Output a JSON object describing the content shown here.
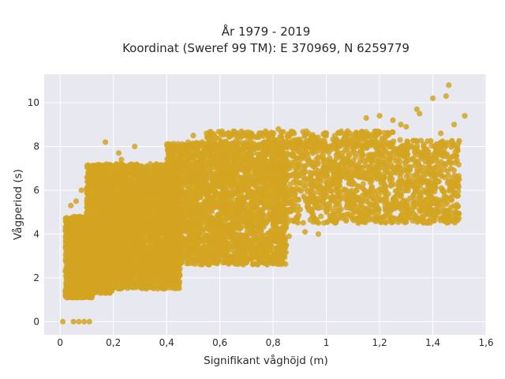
{
  "chart_data": {
    "type": "scatter",
    "title_line1": "År 1979 - 2019",
    "title_line2": "Koordinat (Sweref 99 TM): E 370969, N 6259779",
    "xlabel": "Signifikant våghöjd (m)",
    "ylabel": "Vågperiod (s)",
    "xlim": [
      -0.06,
      1.6
    ],
    "ylim": [
      -0.6,
      11.3
    ],
    "x_ticks": [
      0,
      0.2,
      0.4,
      0.6,
      0.8,
      1,
      1.2,
      1.4,
      1.6
    ],
    "x_tick_labels": [
      "0",
      "0,2",
      "0,4",
      "0,6",
      "0,8",
      "1",
      "1,2",
      "1,4",
      "1,6"
    ],
    "y_ticks": [
      0,
      2,
      4,
      6,
      8,
      10
    ],
    "y_tick_labels": [
      "0",
      "2",
      "4",
      "6",
      "8",
      "10"
    ],
    "grid": true,
    "colors": {
      "point": "#d4a521",
      "plot_bg": "#e8e8f0",
      "grid": "#ffffff"
    },
    "series": [
      {
        "clusters": [
          {
            "x": [
              0.02,
              0.12
            ],
            "y": [
              1.1,
              1.5
            ],
            "n": 500
          },
          {
            "x": [
              0.02,
              0.2
            ],
            "y": [
              1.3,
              4.8
            ],
            "n": 2200
          },
          {
            "x": [
              0.1,
              0.45
            ],
            "y": [
              1.5,
              7.2
            ],
            "n": 3600
          },
          {
            "x": [
              0.4,
              0.85
            ],
            "y": [
              2.6,
              8.2
            ],
            "n": 2600
          },
          {
            "x": [
              0.8,
              1.5
            ],
            "y": [
              4.5,
              8.3
            ],
            "n": 1500
          },
          {
            "x": [
              0.55,
              1.25
            ],
            "y": [
              7.9,
              8.7
            ],
            "n": 300
          }
        ],
        "points": [
          [
            0.01,
            0.0
          ],
          [
            0.05,
            0.0
          ],
          [
            0.07,
            0.0
          ],
          [
            0.09,
            0.0
          ],
          [
            0.11,
            0.0
          ],
          [
            0.28,
            8.0
          ],
          [
            0.22,
            7.7
          ],
          [
            0.23,
            7.4
          ],
          [
            0.17,
            8.2
          ],
          [
            0.16,
            7.0
          ],
          [
            0.5,
            8.5
          ],
          [
            0.55,
            8.6
          ],
          [
            0.68,
            8.6
          ],
          [
            0.82,
            8.8
          ],
          [
            1.0,
            8.6
          ],
          [
            1.08,
            8.7
          ],
          [
            1.12,
            8.4
          ],
          [
            1.15,
            9.3
          ],
          [
            1.2,
            9.4
          ],
          [
            1.25,
            9.2
          ],
          [
            1.28,
            9.0
          ],
          [
            1.3,
            8.9
          ],
          [
            1.34,
            9.7
          ],
          [
            1.35,
            9.5
          ],
          [
            1.4,
            10.2
          ],
          [
            1.45,
            10.3
          ],
          [
            1.46,
            10.8
          ],
          [
            1.52,
            9.4
          ],
          [
            1.48,
            9.0
          ],
          [
            1.43,
            8.6
          ],
          [
            1.15,
            5.5
          ],
          [
            0.97,
            4.0
          ],
          [
            0.83,
            3.5
          ],
          [
            0.64,
            2.8
          ],
          [
            0.86,
            3.9
          ],
          [
            0.92,
            4.1
          ],
          [
            0.95,
            4.9
          ],
          [
            1.12,
            4.5
          ],
          [
            1.05,
            6.2
          ],
          [
            1.3,
            6.0
          ],
          [
            0.76,
            3.4
          ],
          [
            0.72,
            3.6
          ],
          [
            0.62,
            3.1
          ],
          [
            0.55,
            2.7
          ],
          [
            0.58,
            2.9
          ],
          [
            0.06,
            5.5
          ],
          [
            0.04,
            5.3
          ],
          [
            0.08,
            6.0
          ],
          [
            0.1,
            6.1
          ],
          [
            0.12,
            5.8
          ]
        ]
      }
    ]
  }
}
